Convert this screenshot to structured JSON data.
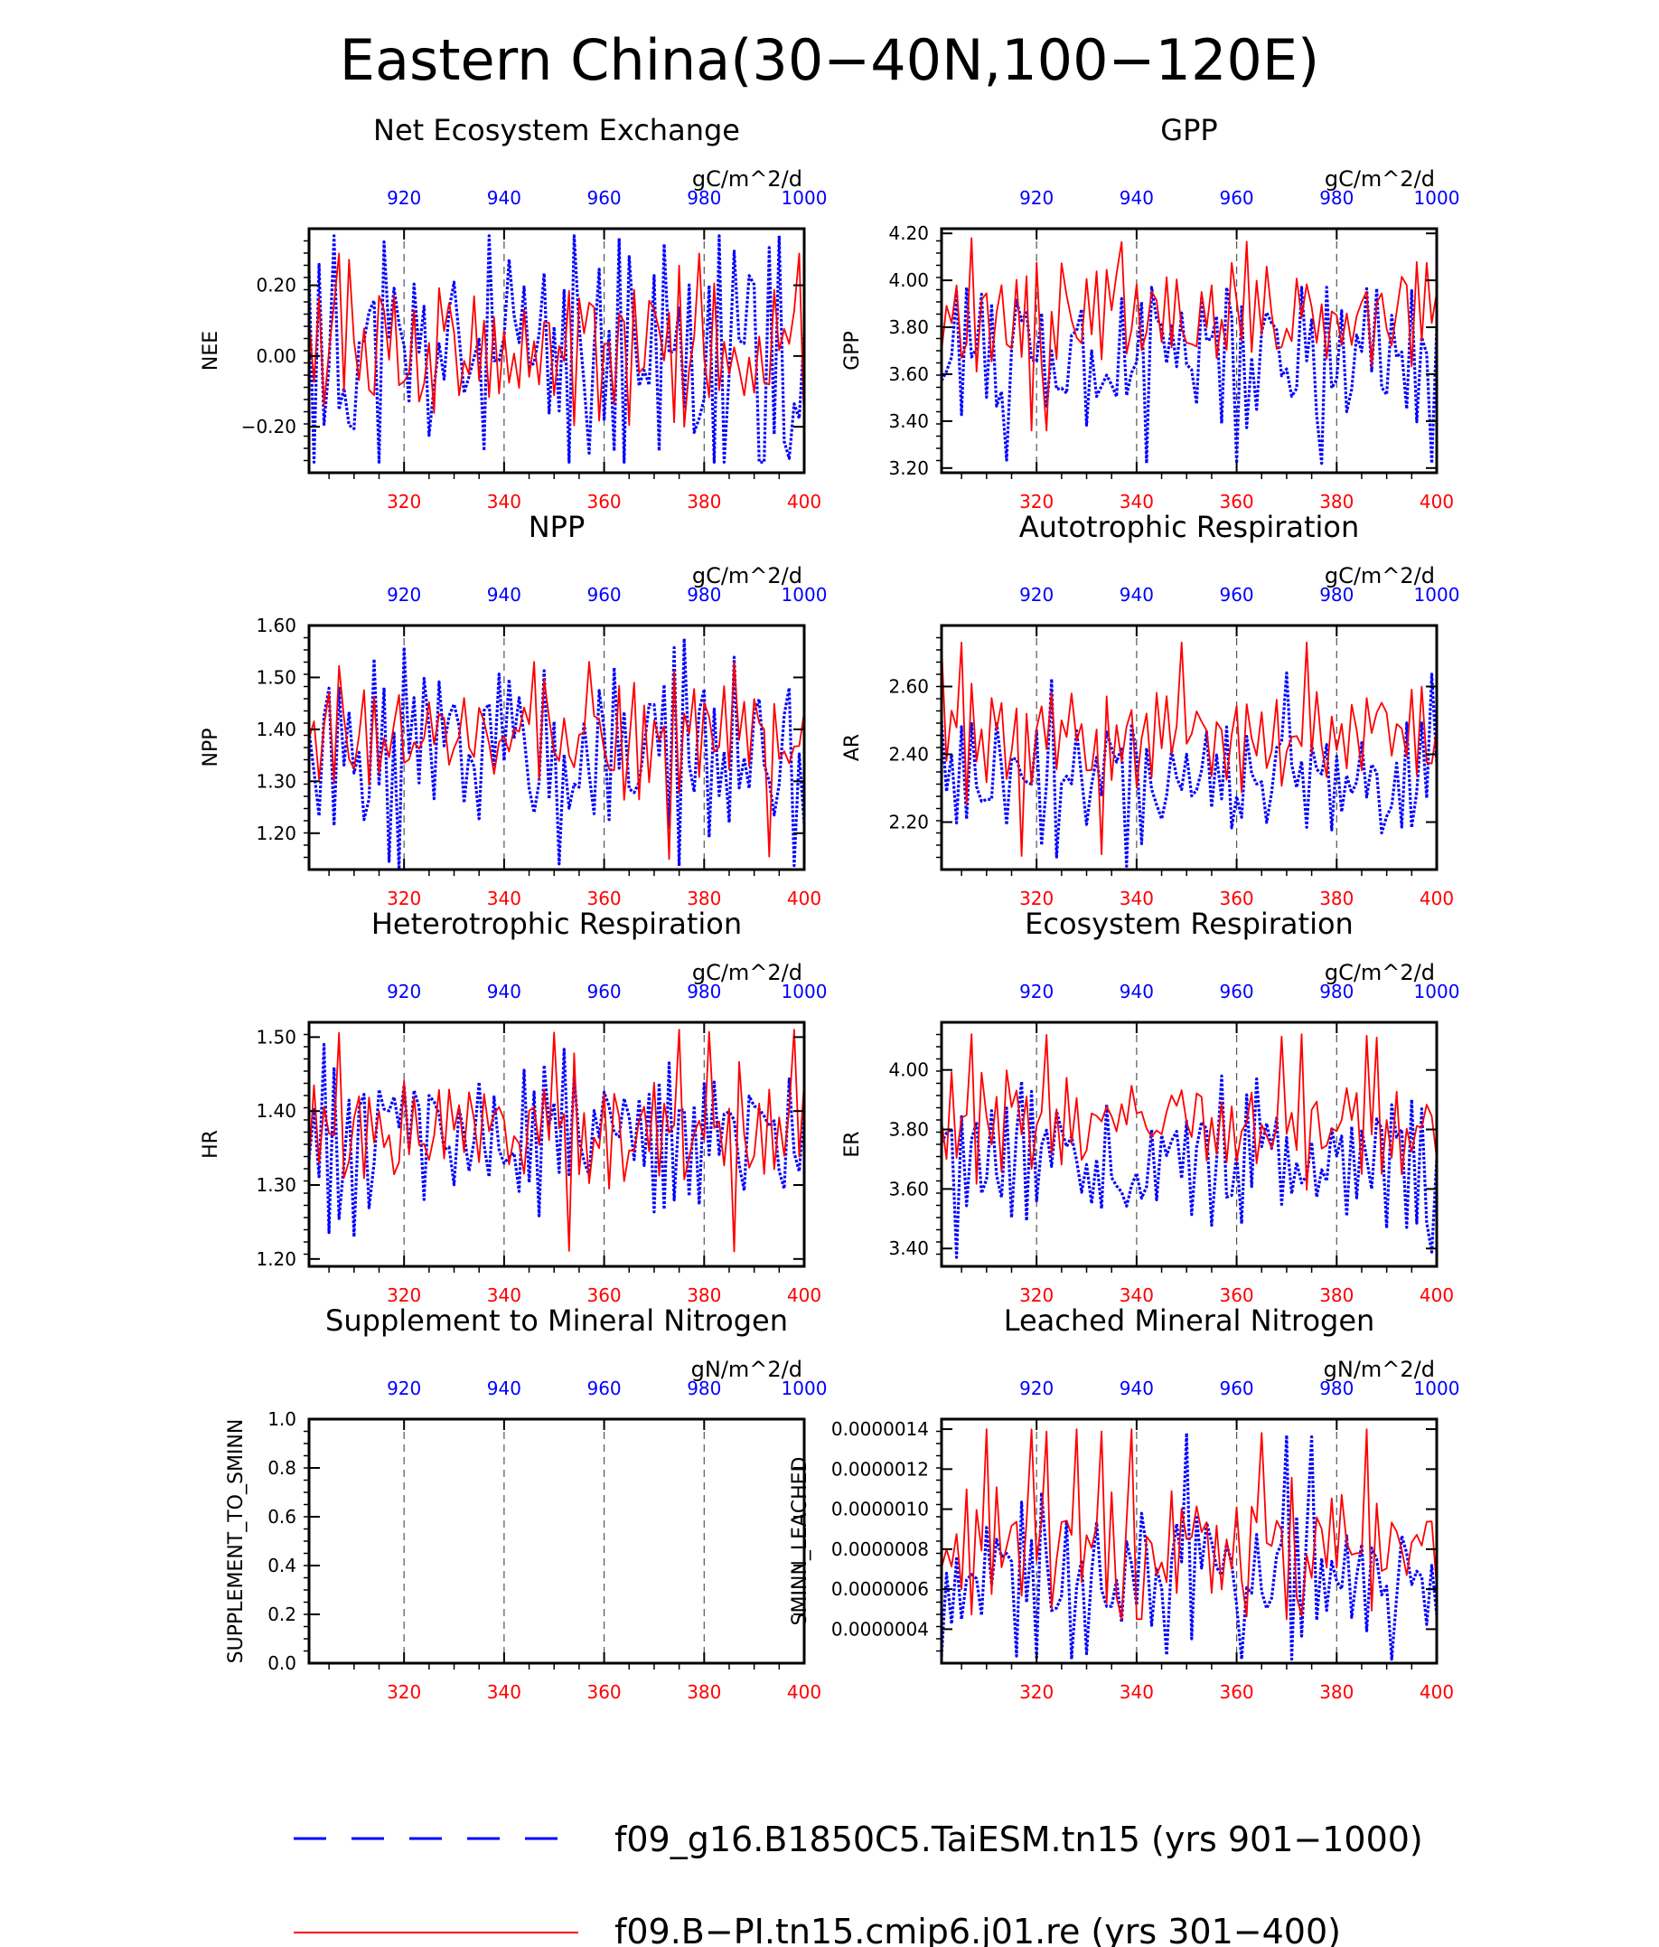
{
  "page": {
    "title": "Eastern China(30−40N,100−120E)",
    "legend": [
      {
        "label": "f09_g16.B1850C5.TaiESM.tn15 (yrs 901−1000)",
        "color": "#0000ff",
        "style": "dashed"
      },
      {
        "label": "f09.B−PI.tn15.cmip6.j01.re (yrs 301−400)",
        "color": "#ff0000",
        "style": "solid"
      }
    ]
  },
  "colors": {
    "series_a": "#0000ff",
    "series_b": "#ff0000",
    "axis": "#000000"
  },
  "chart_data": [
    {
      "type": "line",
      "title": "Net Ecosystem Exchange",
      "ylabel": "NEE",
      "units": "gC/m^2/d",
      "ylim": [
        -0.33,
        0.36
      ],
      "yticks": [
        -0.2,
        0.0,
        0.2
      ],
      "ytick_labels": [
        "−0.20",
        "0.00",
        "0.20"
      ],
      "x_bottom_ticks": [
        "320",
        "340",
        "360",
        "380",
        "400"
      ],
      "x_top_ticks": [
        "920",
        "940",
        "960",
        "980",
        "1000"
      ],
      "series": [
        {
          "name": "f09_g16.B1850C5.TaiESM.tn15 (yrs 901−1000)",
          "color": "#0000ff",
          "style": "dotted",
          "x": [
            901,
            1000
          ],
          "gen": {
            "seed": 11,
            "mean": 0.0,
            "amp": 0.22,
            "min": -0.3,
            "max": 0.34
          }
        },
        {
          "name": "f09.B−PI.tn15.cmip6.j01.re (yrs 301−400)",
          "color": "#ff0000",
          "style": "solid",
          "x": [
            301,
            400
          ],
          "gen": {
            "seed": 12,
            "mean": 0.02,
            "amp": 0.13,
            "min": -0.2,
            "max": 0.29
          }
        }
      ]
    },
    {
      "type": "line",
      "title": "GPP",
      "ylabel": "GPP",
      "units": "gC/m^2/d",
      "ylim": [
        3.18,
        4.22
      ],
      "yticks": [
        3.2,
        3.4,
        3.6,
        3.8,
        4.0,
        4.2
      ],
      "ytick_labels": [
        "3.20",
        "3.40",
        "3.60",
        "3.80",
        "4.00",
        "4.20"
      ],
      "x_bottom_ticks": [
        "320",
        "340",
        "360",
        "380",
        "400"
      ],
      "x_top_ticks": [
        "920",
        "940",
        "960",
        "980",
        "1000"
      ],
      "series": [
        {
          "name": "f09_g16.B1850C5.TaiESM.tn15 (yrs 901−1000)",
          "color": "#0000ff",
          "style": "dotted",
          "x": [
            901,
            1000
          ],
          "gen": {
            "seed": 21,
            "mean": 3.7,
            "amp": 0.2,
            "min": 3.22,
            "max": 3.97
          }
        },
        {
          "name": "f09.B−PI.tn15.cmip6.j01.re (yrs 301−400)",
          "color": "#ff0000",
          "style": "solid",
          "x": [
            301,
            400
          ],
          "gen": {
            "seed": 22,
            "mean": 3.85,
            "amp": 0.14,
            "min": 3.36,
            "max": 4.18
          }
        }
      ]
    },
    {
      "type": "line",
      "title": "NPP",
      "ylabel": "NPP",
      "units": "gC/m^2/d",
      "ylim": [
        1.13,
        1.6
      ],
      "yticks": [
        1.2,
        1.3,
        1.4,
        1.5,
        1.6
      ],
      "ytick_labels": [
        "1.20",
        "1.30",
        "1.40",
        "1.50",
        "1.60"
      ],
      "x_bottom_ticks": [
        "320",
        "340",
        "360",
        "380",
        "400"
      ],
      "x_top_ticks": [
        "920",
        "940",
        "960",
        "980",
        "1000"
      ],
      "series": [
        {
          "name": "f09_g16.B1850C5.TaiESM.tn15 (yrs 901−1000)",
          "color": "#0000ff",
          "style": "dotted",
          "x": [
            901,
            1000
          ],
          "gen": {
            "seed": 31,
            "mean": 1.36,
            "amp": 0.11,
            "min": 1.13,
            "max": 1.58
          }
        },
        {
          "name": "f09.B−PI.tn15.cmip6.j01.re (yrs 301−400)",
          "color": "#ff0000",
          "style": "solid",
          "x": [
            301,
            400
          ],
          "gen": {
            "seed": 32,
            "mean": 1.39,
            "amp": 0.07,
            "min": 1.15,
            "max": 1.53
          }
        }
      ]
    },
    {
      "type": "line",
      "title": "Autotrophic Respiration",
      "ylabel": "AR",
      "units": "gC/m^2/d",
      "ylim": [
        2.06,
        2.78
      ],
      "yticks": [
        2.2,
        2.4,
        2.6
      ],
      "ytick_labels": [
        "2.20",
        "2.40",
        "2.60"
      ],
      "x_bottom_ticks": [
        "320",
        "340",
        "360",
        "380",
        "400"
      ],
      "x_top_ticks": [
        "920",
        "940",
        "960",
        "980",
        "1000"
      ],
      "series": [
        {
          "name": "f09_g16.B1850C5.TaiESM.tn15 (yrs 901−1000)",
          "color": "#0000ff",
          "style": "dotted",
          "x": [
            901,
            1000
          ],
          "gen": {
            "seed": 41,
            "mean": 2.33,
            "amp": 0.13,
            "min": 2.07,
            "max": 2.64
          }
        },
        {
          "name": "f09.B−PI.tn15.cmip6.j01.re (yrs 301−400)",
          "color": "#ff0000",
          "style": "solid",
          "x": [
            301,
            400
          ],
          "gen": {
            "seed": 42,
            "mean": 2.45,
            "amp": 0.1,
            "min": 2.1,
            "max": 2.73
          }
        }
      ]
    },
    {
      "type": "line",
      "title": "Heterotrophic Respiration",
      "ylabel": "HR",
      "units": "gC/m^2/d",
      "ylim": [
        1.19,
        1.52
      ],
      "yticks": [
        1.2,
        1.3,
        1.4,
        1.5
      ],
      "ytick_labels": [
        "1.20",
        "1.30",
        "1.40",
        "1.50"
      ],
      "x_bottom_ticks": [
        "320",
        "340",
        "360",
        "380",
        "400"
      ],
      "x_top_ticks": [
        "920",
        "940",
        "960",
        "980",
        "1000"
      ],
      "series": [
        {
          "name": "f09_g16.B1850C5.TaiESM.tn15 (yrs 901−1000)",
          "color": "#0000ff",
          "style": "dotted",
          "x": [
            901,
            1000
          ],
          "gen": {
            "seed": 51,
            "mean": 1.36,
            "amp": 0.06,
            "min": 1.23,
            "max": 1.49
          }
        },
        {
          "name": "f09.B−PI.tn15.cmip6.j01.re (yrs 301−400)",
          "color": "#ff0000",
          "style": "solid",
          "x": [
            301,
            400
          ],
          "gen": {
            "seed": 52,
            "mean": 1.37,
            "amp": 0.045,
            "min": 1.21,
            "max": 1.51
          }
        }
      ]
    },
    {
      "type": "line",
      "title": "Ecosystem Respiration",
      "ylabel": "ER",
      "units": "gC/m^2/d",
      "ylim": [
        3.34,
        4.16
      ],
      "yticks": [
        3.4,
        3.6,
        3.8,
        4.0
      ],
      "ytick_labels": [
        "3.40",
        "3.60",
        "3.80",
        "4.00"
      ],
      "x_bottom_ticks": [
        "320",
        "340",
        "360",
        "380",
        "400"
      ],
      "x_top_ticks": [
        "920",
        "940",
        "960",
        "980",
        "1000"
      ],
      "series": [
        {
          "name": "f09_g16.B1850C5.TaiESM.tn15 (yrs 901−1000)",
          "color": "#0000ff",
          "style": "dotted",
          "x": [
            901,
            1000
          ],
          "gen": {
            "seed": 61,
            "mean": 3.68,
            "amp": 0.14,
            "min": 3.37,
            "max": 3.98
          }
        },
        {
          "name": "f09.B−PI.tn15.cmip6.j01.re (yrs 301−400)",
          "color": "#ff0000",
          "style": "solid",
          "x": [
            301,
            400
          ],
          "gen": {
            "seed": 62,
            "mean": 3.82,
            "amp": 0.1,
            "min": 3.39,
            "max": 4.12
          }
        }
      ]
    },
    {
      "type": "line",
      "title": "Supplement to Mineral Nitrogen",
      "ylabel": "SUPPLEMENT_TO_SMINN",
      "units": "gN/m^2/d",
      "ylim": [
        0.0,
        1.0
      ],
      "yticks": [
        0.0,
        0.2,
        0.4,
        0.6,
        0.8,
        1.0
      ],
      "ytick_labels": [
        "0.0",
        "0.2",
        "0.4",
        "0.6",
        "0.8",
        "1.0"
      ],
      "x_bottom_ticks": [
        "320",
        "340",
        "360",
        "380",
        "400"
      ],
      "x_top_ticks": [
        "920",
        "940",
        "960",
        "980",
        "1000"
      ],
      "series": []
    },
    {
      "type": "line",
      "title": "Leached Mineral Nitrogen",
      "ylabel": "SMINN_LEACHED",
      "units": "gN/m^2/d",
      "ylim": [
        2.3e-07,
        1.45e-06
      ],
      "yticks": [
        4e-07,
        6e-07,
        8e-07,
        1e-06,
        1.2e-06,
        1.4e-06
      ],
      "ytick_labels": [
        "0.0000004",
        "0.0000006",
        "0.0000008",
        "0.0000010",
        "0.0000012",
        "0.0000014"
      ],
      "x_bottom_ticks": [
        "320",
        "340",
        "360",
        "380",
        "400"
      ],
      "x_top_ticks": [
        "920",
        "940",
        "960",
        "980",
        "1000"
      ],
      "series": [
        {
          "name": "f09_g16.B1850C5.TaiESM.tn15 (yrs 901−1000)",
          "color": "#0000ff",
          "style": "dotted",
          "x": [
            901,
            1000
          ],
          "gen": {
            "seed": 81,
            "mean": 6.8e-07,
            "amp": 2e-07,
            "min": 2.5e-07,
            "max": 1.38e-06
          }
        },
        {
          "name": "f09.B−PI.tn15.cmip6.j01.re (yrs 301−400)",
          "color": "#ff0000",
          "style": "solid",
          "x": [
            301,
            400
          ],
          "gen": {
            "seed": 82,
            "mean": 8.2e-07,
            "amp": 1.7e-07,
            "min": 4.5e-07,
            "max": 1.4e-06
          }
        }
      ]
    }
  ]
}
